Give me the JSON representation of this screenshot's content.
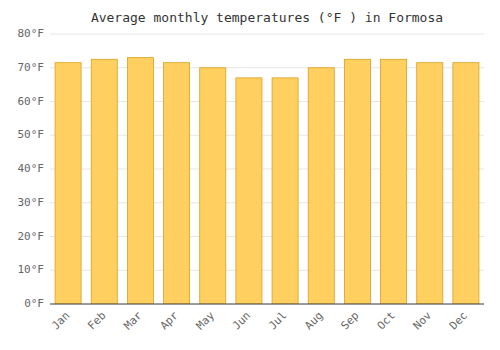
{
  "chart_data": {
    "type": "bar",
    "title": "Average monthly temperatures (°F ) in Formosa",
    "categories": [
      "Jan",
      "Feb",
      "Mar",
      "Apr",
      "May",
      "Jun",
      "Jul",
      "Aug",
      "Sep",
      "Oct",
      "Nov",
      "Dec"
    ],
    "values": [
      71.5,
      72.5,
      73.0,
      71.5,
      70.0,
      67.0,
      67.0,
      70.0,
      72.5,
      72.5,
      71.5,
      71.5
    ],
    "color": "#FFD060",
    "ylim": [
      0,
      80
    ],
    "yticks": [
      {
        "value": 0,
        "label": "0°F"
      },
      {
        "value": 10,
        "label": "10°F"
      },
      {
        "value": 20,
        "label": "20°F"
      },
      {
        "value": 30,
        "label": "30°F"
      },
      {
        "value": 40,
        "label": "40°F"
      },
      {
        "value": 50,
        "label": "50°F"
      },
      {
        "value": 60,
        "label": "60°F"
      },
      {
        "value": 70,
        "label": "70°F"
      },
      {
        "value": 80,
        "label": "80°F"
      }
    ],
    "grid": true
  }
}
